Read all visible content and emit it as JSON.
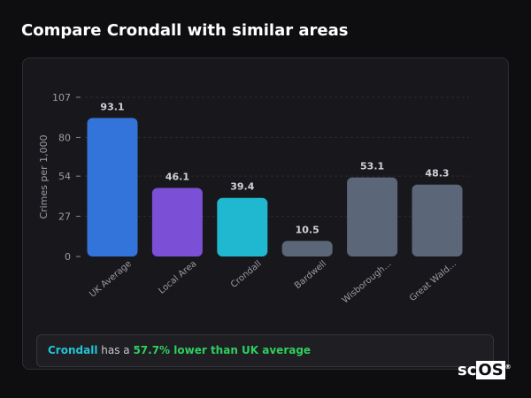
{
  "title": "Compare Crondall with similar areas",
  "summary": {
    "place": "Crondall",
    "middle": " has a ",
    "highlight": "57.7% lower than UK average"
  },
  "logo": {
    "a": "sc",
    "b": "OS",
    "mark": "®"
  },
  "chart_data": {
    "type": "bar",
    "ylabel": "Crimes per 1,000",
    "ylim": [
      0,
      107
    ],
    "yticks": [
      0,
      27,
      54,
      80,
      107
    ],
    "grid": true,
    "categories": [
      "UK Average",
      "Local Area",
      "Crondall",
      "Bardwell",
      "Wisborough...",
      "Great Wald..."
    ],
    "values": [
      93.1,
      46.1,
      39.4,
      10.5,
      53.1,
      48.3
    ],
    "value_labels": [
      "93.1",
      "46.1",
      "39.4",
      "10.5",
      "53.1",
      "48.3"
    ],
    "colors": [
      "#3374db",
      "#7b4fd6",
      "#1fb8d0",
      "#5c6679",
      "#5c6679",
      "#5c6679"
    ]
  }
}
